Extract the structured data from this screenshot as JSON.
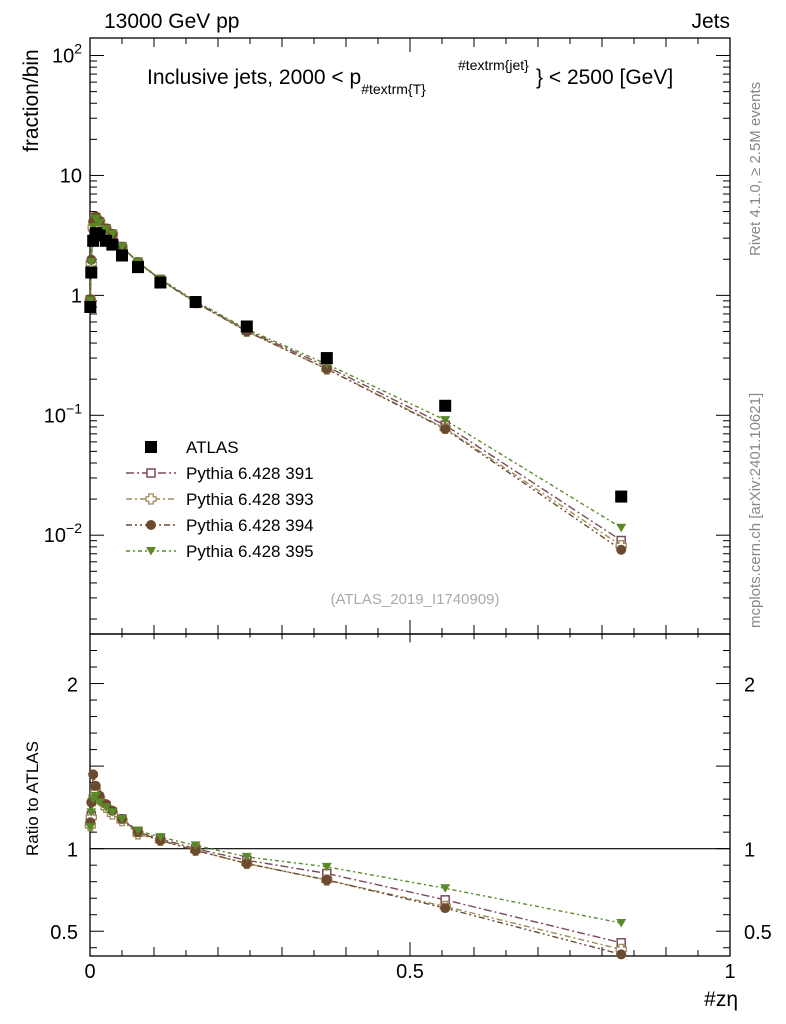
{
  "header": {
    "left": "13000 GeV pp",
    "right": "Jets"
  },
  "side_labels": {
    "rivet": "Rivet 4.1.0, ≥ 2.5M events",
    "mcplots": "mcplots.cern.ch [arXiv:2401.10621]"
  },
  "chart_data": {
    "type": "scatter",
    "title": {
      "pre": "Inclusive jets, 2000 < p",
      "sub": "#textrm{T}",
      "sup": "#textrm{jet}",
      "post": "} < 2500 [GeV]"
    },
    "analysis_id": "(ATLAS_2019_I1740909)",
    "xlabel": "#zη",
    "ylabel_main": "fraction/bin",
    "ylabel_ratio": "Ratio to ATLAS",
    "xlim": [
      0,
      1
    ],
    "ylim_main": [
      0.0015,
      140
    ],
    "ylim_ratio": [
      0.35,
      2.3
    ],
    "main_yticks": [
      {
        "base": "10",
        "exp": "2",
        "value": 100
      },
      {
        "base": "10",
        "exp": "",
        "value": 10
      },
      {
        "base": "1",
        "exp": "",
        "value": 1
      },
      {
        "base": "10",
        "exp": "−1",
        "value": 0.1
      },
      {
        "base": "10",
        "exp": "−2",
        "value": 0.01
      }
    ],
    "ratio_yticks": [
      {
        "label": "2",
        "value": 2
      },
      {
        "label": "1",
        "value": 1
      },
      {
        "label": "0.5",
        "value": 0.5
      }
    ],
    "xticks": [
      {
        "label": "0",
        "value": 0
      },
      {
        "label": "0.5",
        "value": 0.5
      },
      {
        "label": "1",
        "value": 1
      }
    ],
    "x": [
      0.0005,
      0.002,
      0.005,
      0.009,
      0.015,
      0.025,
      0.035,
      0.05,
      0.075,
      0.11,
      0.165,
      0.245,
      0.37,
      0.555,
      0.83
    ],
    "reference": {
      "name": "ATLAS",
      "color": "#000000",
      "values": [
        0.8,
        1.55,
        2.85,
        3.3,
        3.15,
        2.85,
        2.65,
        2.15,
        1.72,
        1.28,
        0.88,
        0.55,
        0.3,
        0.12,
        0.021
      ]
    },
    "series": [
      {
        "name": "Pythia 6.428 391",
        "color": "#7b4a5a",
        "marker": "open-square",
        "ratio": [
          1.15,
          1.2,
          1.3,
          1.35,
          1.3,
          1.26,
          1.22,
          1.18,
          1.1,
          1.06,
          1.0,
          0.93,
          0.85,
          0.69,
          0.43
        ]
      },
      {
        "name": "Pythia 6.428 393",
        "color": "#a08a5a",
        "marker": "open-cross",
        "ratio": [
          1.14,
          1.19,
          1.29,
          1.34,
          1.3,
          1.25,
          1.21,
          1.17,
          1.09,
          1.05,
          0.99,
          0.91,
          0.81,
          0.65,
          0.39
        ]
      },
      {
        "name": "Pythia 6.428 394",
        "color": "#6b4a30",
        "marker": "filled-circle",
        "ratio": [
          1.16,
          1.28,
          1.45,
          1.38,
          1.32,
          1.27,
          1.23,
          1.18,
          1.1,
          1.05,
          0.99,
          0.91,
          0.81,
          0.64,
          0.36
        ]
      },
      {
        "name": "Pythia 6.428 395",
        "color": "#5a8a28",
        "marker": "filled-triangle-down",
        "ratio": [
          1.13,
          1.22,
          1.3,
          1.32,
          1.28,
          1.25,
          1.22,
          1.18,
          1.11,
          1.07,
          1.02,
          0.95,
          0.89,
          0.76,
          0.55
        ]
      }
    ]
  }
}
